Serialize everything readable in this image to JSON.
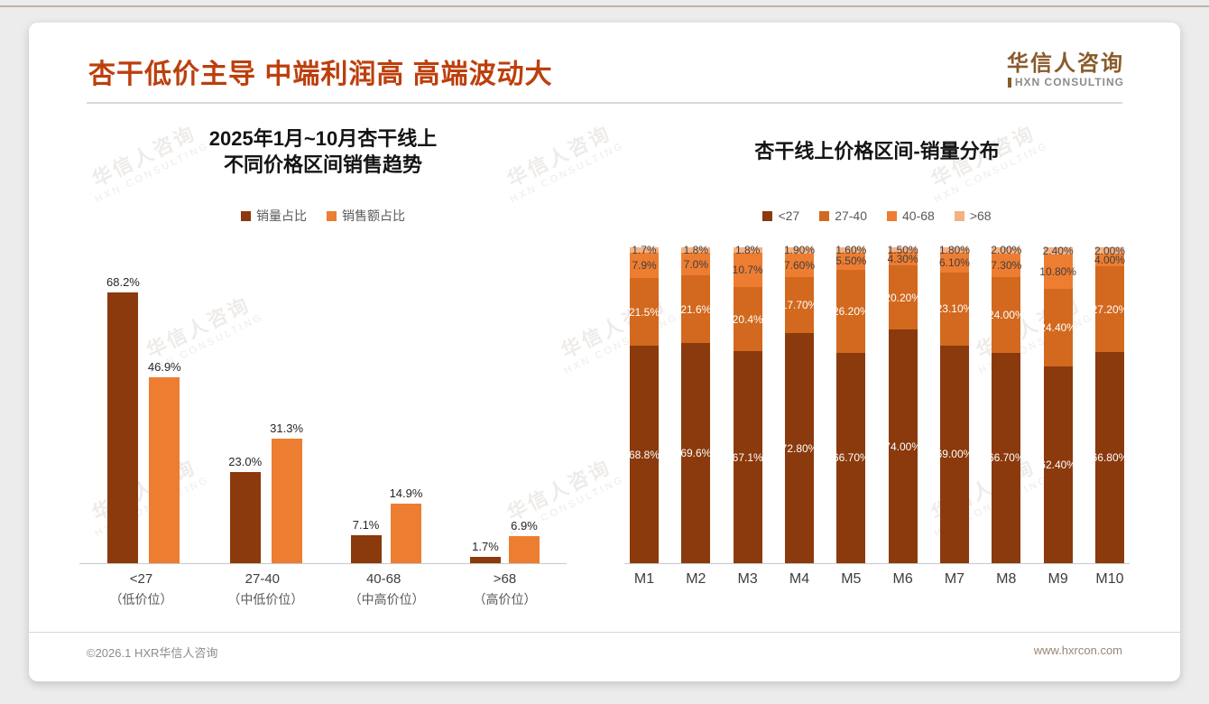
{
  "slide": {
    "title": "杏干低价主导 中端利润高 高端波动大",
    "logo": {
      "cn": "华信人咨询",
      "en": "HXN CONSULTING"
    },
    "footer": {
      "left": "©2026.1 HXR华信人咨询",
      "right": "www.hxrcon.com"
    }
  },
  "watermark": {
    "line1": "华信人咨询",
    "line2": "HXN CONSULTING"
  },
  "colors": {
    "accent": "#bc3f0c",
    "logo_brown": "#8a5a2b"
  },
  "chart_data": [
    {
      "type": "bar",
      "stacked": false,
      "title_line1": "2025年1月~10月杏干线上",
      "title_line2": "不同价格区间销售趋势",
      "categories": [
        "<27",
        "27-40",
        "40-68",
        ">68"
      ],
      "category_subs": [
        "（低价位）",
        "（中低价位）",
        "（中高价位）",
        "（高价位）"
      ],
      "series": [
        {
          "name": "销量占比",
          "color": "#8a3a0c",
          "values": [
            68.2,
            23.0,
            7.1,
            1.7
          ],
          "labels": [
            "68.2%",
            "23.0%",
            "7.1%",
            "1.7%"
          ]
        },
        {
          "name": "销售额占比",
          "color": "#ED7D31",
          "values": [
            46.9,
            31.3,
            14.9,
            6.9
          ],
          "labels": [
            "46.9%",
            "31.3%",
            "14.9%",
            "6.9%"
          ]
        }
      ],
      "ylim": [
        0,
        75
      ],
      "grid": false,
      "legend_position": "top",
      "xlabel": "",
      "ylabel": ""
    },
    {
      "type": "bar",
      "stacked": true,
      "title": "杏干线上价格区间-销量分布",
      "categories": [
        "M1",
        "M2",
        "M3",
        "M4",
        "M5",
        "M6",
        "M7",
        "M8",
        "M9",
        "M10"
      ],
      "series": [
        {
          "name": "<27",
          "color": "#8a3a0c",
          "label_color": "#ffffff",
          "values": [
            68.8,
            69.6,
            67.1,
            72.8,
            66.7,
            74.0,
            69.0,
            66.7,
            62.4,
            66.8
          ],
          "labels": [
            "68.8%",
            "69.6%",
            "67.1%",
            "72.80%",
            "66.70%",
            "74.00%",
            "69.00%",
            "66.70%",
            "62.40%",
            "66.80%"
          ]
        },
        {
          "name": "27-40",
          "color": "#d2691e",
          "label_color": "#ffffff",
          "values": [
            21.5,
            21.6,
            20.4,
            17.7,
            26.2,
            20.2,
            23.1,
            24.0,
            24.4,
            27.2
          ],
          "labels": [
            "21.5%",
            "21.6%",
            "20.4%",
            "17.70%",
            "26.20%",
            "20.20%",
            "23.10%",
            "24.00%",
            "24.40%",
            "27.20%"
          ]
        },
        {
          "name": "40-68",
          "color": "#ED7D31",
          "label_color": "#3f3f3f",
          "values": [
            7.9,
            7.0,
            10.7,
            7.6,
            5.5,
            4.3,
            6.1,
            7.3,
            10.8,
            4.0
          ],
          "labels": [
            "7.9%",
            "7.0%",
            "10.7%",
            "7.60%",
            "5.50%",
            "4.30%",
            "6.10%",
            "7.30%",
            "10.80%",
            "4.00%"
          ]
        },
        {
          "name": ">68",
          "color": "#F4B183",
          "label_color": "#3f3f3f",
          "values": [
            1.7,
            1.8,
            1.8,
            1.9,
            1.6,
            1.5,
            1.8,
            2.0,
            2.4,
            2.0
          ],
          "labels": [
            "1.7%",
            "1.8%",
            "1.8%",
            "1.90%",
            "1.60%",
            "1.50%",
            "1.80%",
            "2.00%",
            "2.40%",
            "2.00%"
          ]
        }
      ],
      "ylim": [
        0,
        100
      ],
      "grid": false,
      "legend_position": "top",
      "xlabel": "",
      "ylabel": ""
    }
  ]
}
